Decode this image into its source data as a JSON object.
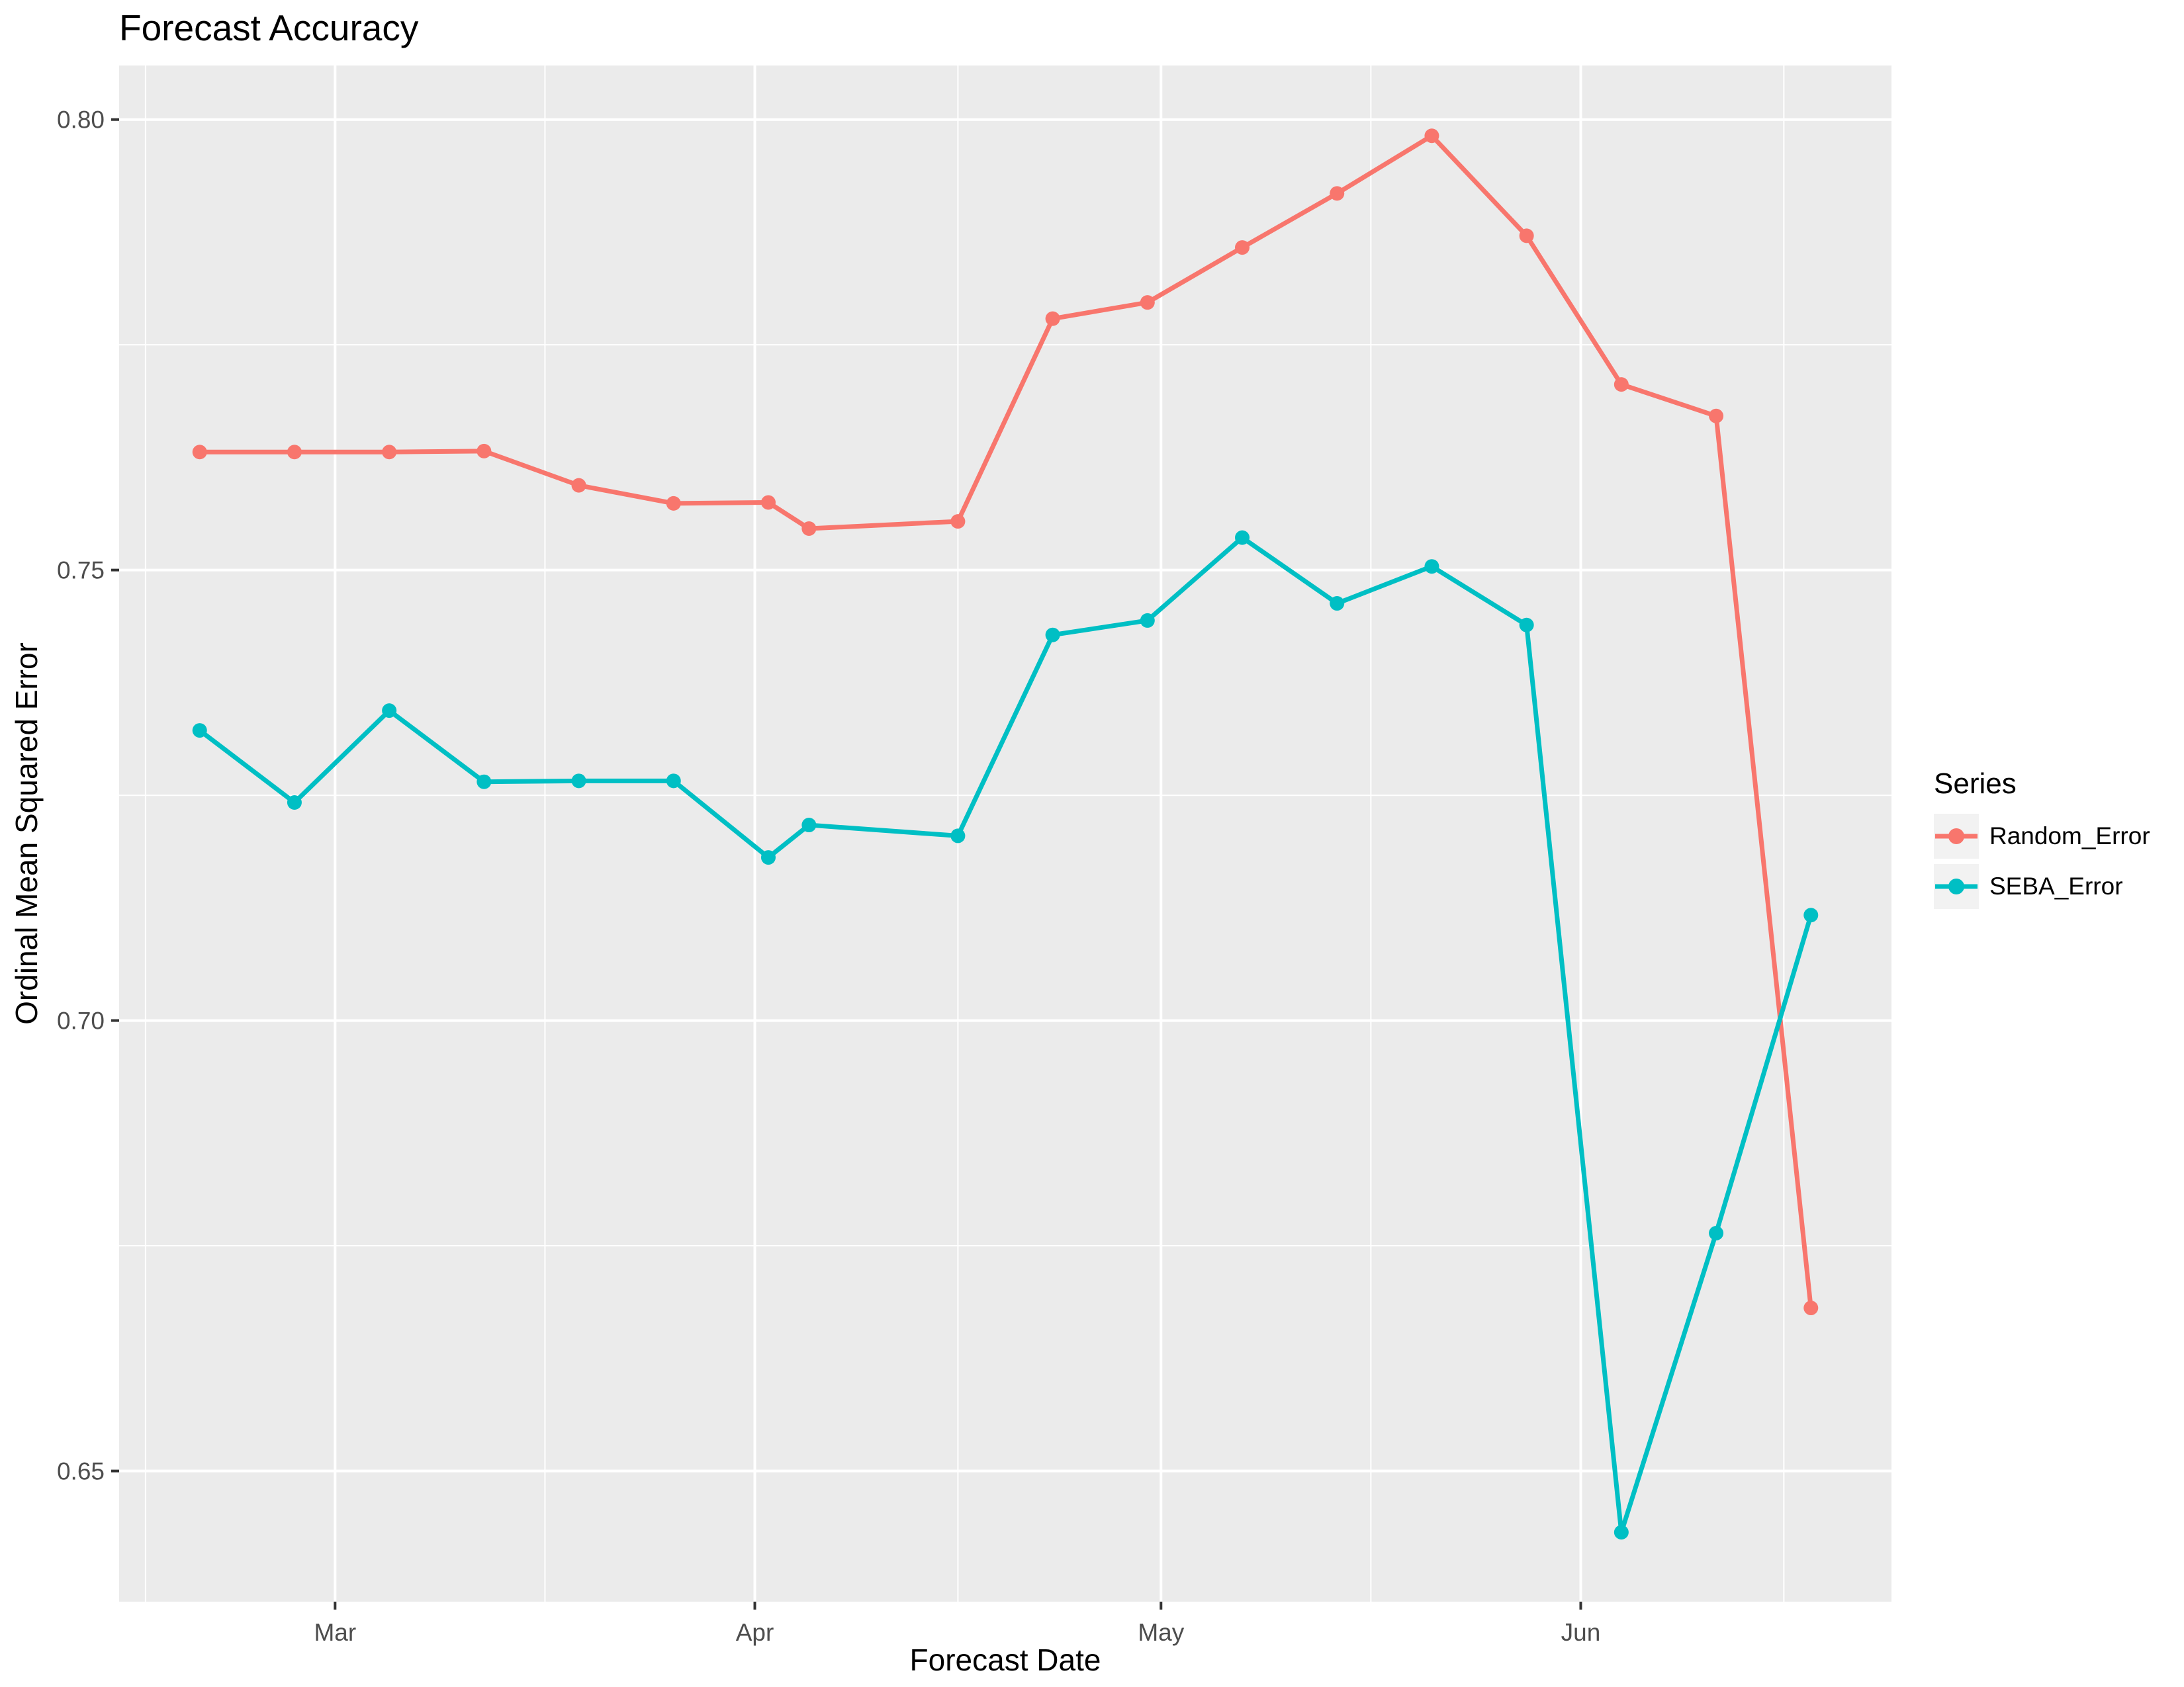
{
  "page_title": "Forecast Accuracy",
  "chart_data": {
    "type": "line",
    "title": "Forecast Accuracy",
    "xlabel": "Forecast Date",
    "ylabel": "Ordinal Mean Squared Error",
    "legend_title": "Series",
    "legend_position": "right",
    "grid": true,
    "panel_bg": "#EBEBEB",
    "grid_color": "#FFFFFF",
    "tick_color": "#333333",
    "tick_label_color": "#4D4D4D",
    "x_tick_labels": [
      "Mar",
      "Apr",
      "May",
      "Jun"
    ],
    "x_ticks_days": [
      10,
      41,
      71,
      102
    ],
    "x_minor_days": [
      -4,
      25.5,
      56,
      86.5,
      117
    ],
    "x_domain_days": [
      -5.95,
      124.95
    ],
    "y_tick_labels": [
      "0.65",
      "0.70",
      "0.75",
      "0.80"
    ],
    "y_ticks": [
      0.65,
      0.7,
      0.75,
      0.8
    ],
    "y_minor_ticks": [
      0.675,
      0.725,
      0.775
    ],
    "y_domain": [
      0.6355,
      0.806
    ],
    "x_dates": [
      "Feb 19",
      "Feb 26",
      "Mar 5",
      "Mar 12",
      "Mar 19",
      "Mar 26",
      "Apr 2",
      "Apr 5",
      "Apr 16",
      "Apr 23",
      "Apr 30",
      "May 7",
      "May 14",
      "May 21",
      "May 28",
      "Jun 4",
      "Jun 11",
      "Jun 18"
    ],
    "x_days": [
      0,
      7,
      14,
      21,
      28,
      35,
      42,
      45,
      56,
      63,
      70,
      77,
      84,
      91,
      98,
      105,
      112,
      119
    ],
    "series": [
      {
        "name": "Random_Error",
        "color": "#F8766D",
        "values": [
          0.7631,
          0.7631,
          0.7631,
          0.7632,
          0.7594,
          0.7574,
          0.7575,
          0.7546,
          0.7554,
          0.7779,
          0.7797,
          0.7858,
          0.7918,
          0.7982,
          0.7871,
          0.7706,
          0.7671,
          0.6681
        ]
      },
      {
        "name": "SEBA_Error",
        "color": "#00BFC4",
        "values": [
          0.7322,
          0.7242,
          0.7344,
          0.7265,
          0.7266,
          0.7266,
          0.7181,
          0.7217,
          0.7205,
          0.7428,
          0.7444,
          0.7536,
          0.7463,
          0.7504,
          0.7439,
          0.6432,
          0.6764,
          0.7117
        ]
      }
    ]
  },
  "legend": {
    "title": "Series",
    "items": [
      {
        "label": "Random_Error",
        "color": "#F8766D"
      },
      {
        "label": "SEBA_Error",
        "color": "#00BFC4"
      }
    ]
  }
}
